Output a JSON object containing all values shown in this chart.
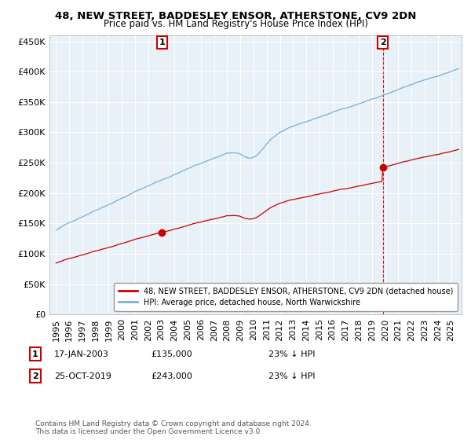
{
  "title": "48, NEW STREET, BADDESLEY ENSOR, ATHERSTONE, CV9 2DN",
  "subtitle": "Price paid vs. HM Land Registry's House Price Index (HPI)",
  "ylim": [
    0,
    460000
  ],
  "yticks": [
    0,
    50000,
    100000,
    150000,
    200000,
    250000,
    300000,
    350000,
    400000,
    450000
  ],
  "legend_label_red": "48, NEW STREET, BADDESLEY ENSOR, ATHERSTONE, CV9 2DN (detached house)",
  "legend_label_blue": "HPI: Average price, detached house, North Warwickshire",
  "annotation1_date": "17-JAN-2003",
  "annotation1_price": "£135,000",
  "annotation1_hpi": "23% ↓ HPI",
  "annotation2_date": "25-OCT-2019",
  "annotation2_price": "£243,000",
  "annotation2_hpi": "23% ↓ HPI",
  "footer": "Contains HM Land Registry data © Crown copyright and database right 2024.\nThis data is licensed under the Open Government Licence v3.0.",
  "red_color": "#cc0000",
  "blue_color": "#7bafd4",
  "sale1_x": 2003.04,
  "sale1_y": 135000,
  "sale2_x": 2019.81,
  "sale2_y": 243000,
  "background_color": "#ffffff",
  "plot_bg_color": "#e8f0f8",
  "grid_color": "#ffffff",
  "xlim_left": 1994.5,
  "xlim_right": 2025.8
}
